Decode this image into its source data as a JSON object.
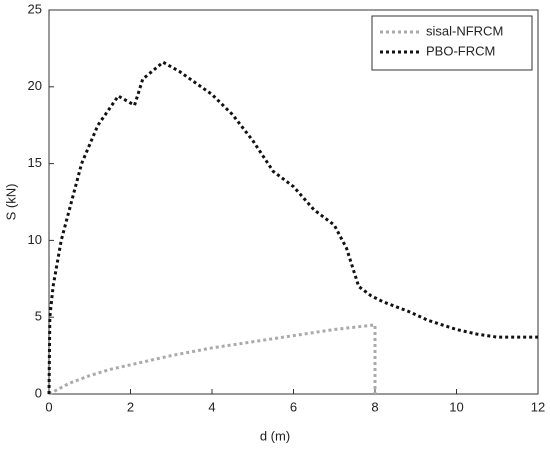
{
  "chart_data": {
    "type": "line",
    "xlabel": "d (m)",
    "ylabel": "S (kN)",
    "xlim": [
      0,
      12
    ],
    "ylim": [
      0,
      25
    ],
    "xticks": [
      0,
      2,
      4,
      6,
      8,
      10,
      12
    ],
    "yticks": [
      0,
      5,
      10,
      15,
      20,
      25
    ],
    "legend": "upper right",
    "series": [
      {
        "name": "sisal-NFRCM",
        "color": "#aaaaaa",
        "x": [
          0,
          0.5,
          1,
          1.5,
          2,
          3,
          4,
          5,
          6,
          7,
          8,
          8
        ],
        "values": [
          0,
          0.7,
          1.2,
          1.6,
          1.9,
          2.5,
          3,
          3.4,
          3.8,
          4.2,
          4.5,
          0
        ]
      },
      {
        "name": "PBO-FRCM",
        "color": "#111111",
        "x": [
          0,
          0.02,
          0.1,
          0.3,
          0.5,
          0.8,
          1.2,
          1.7,
          2.1,
          2.3,
          2.8,
          3.2,
          4.0,
          4.5,
          5.0,
          5.5,
          6.0,
          6.5,
          7.0,
          7.3,
          7.6,
          7.9,
          8.2,
          8.8,
          9.3,
          10,
          10.5,
          11,
          12
        ],
        "values": [
          0,
          5,
          7,
          10,
          12,
          15,
          17.5,
          19.4,
          18.8,
          20.5,
          21.6,
          21,
          19.5,
          18.2,
          16.5,
          14.5,
          13.5,
          12,
          11,
          9.5,
          7,
          6.4,
          6,
          5.4,
          4.8,
          4.2,
          3.9,
          3.7,
          3.7
        ]
      }
    ]
  }
}
